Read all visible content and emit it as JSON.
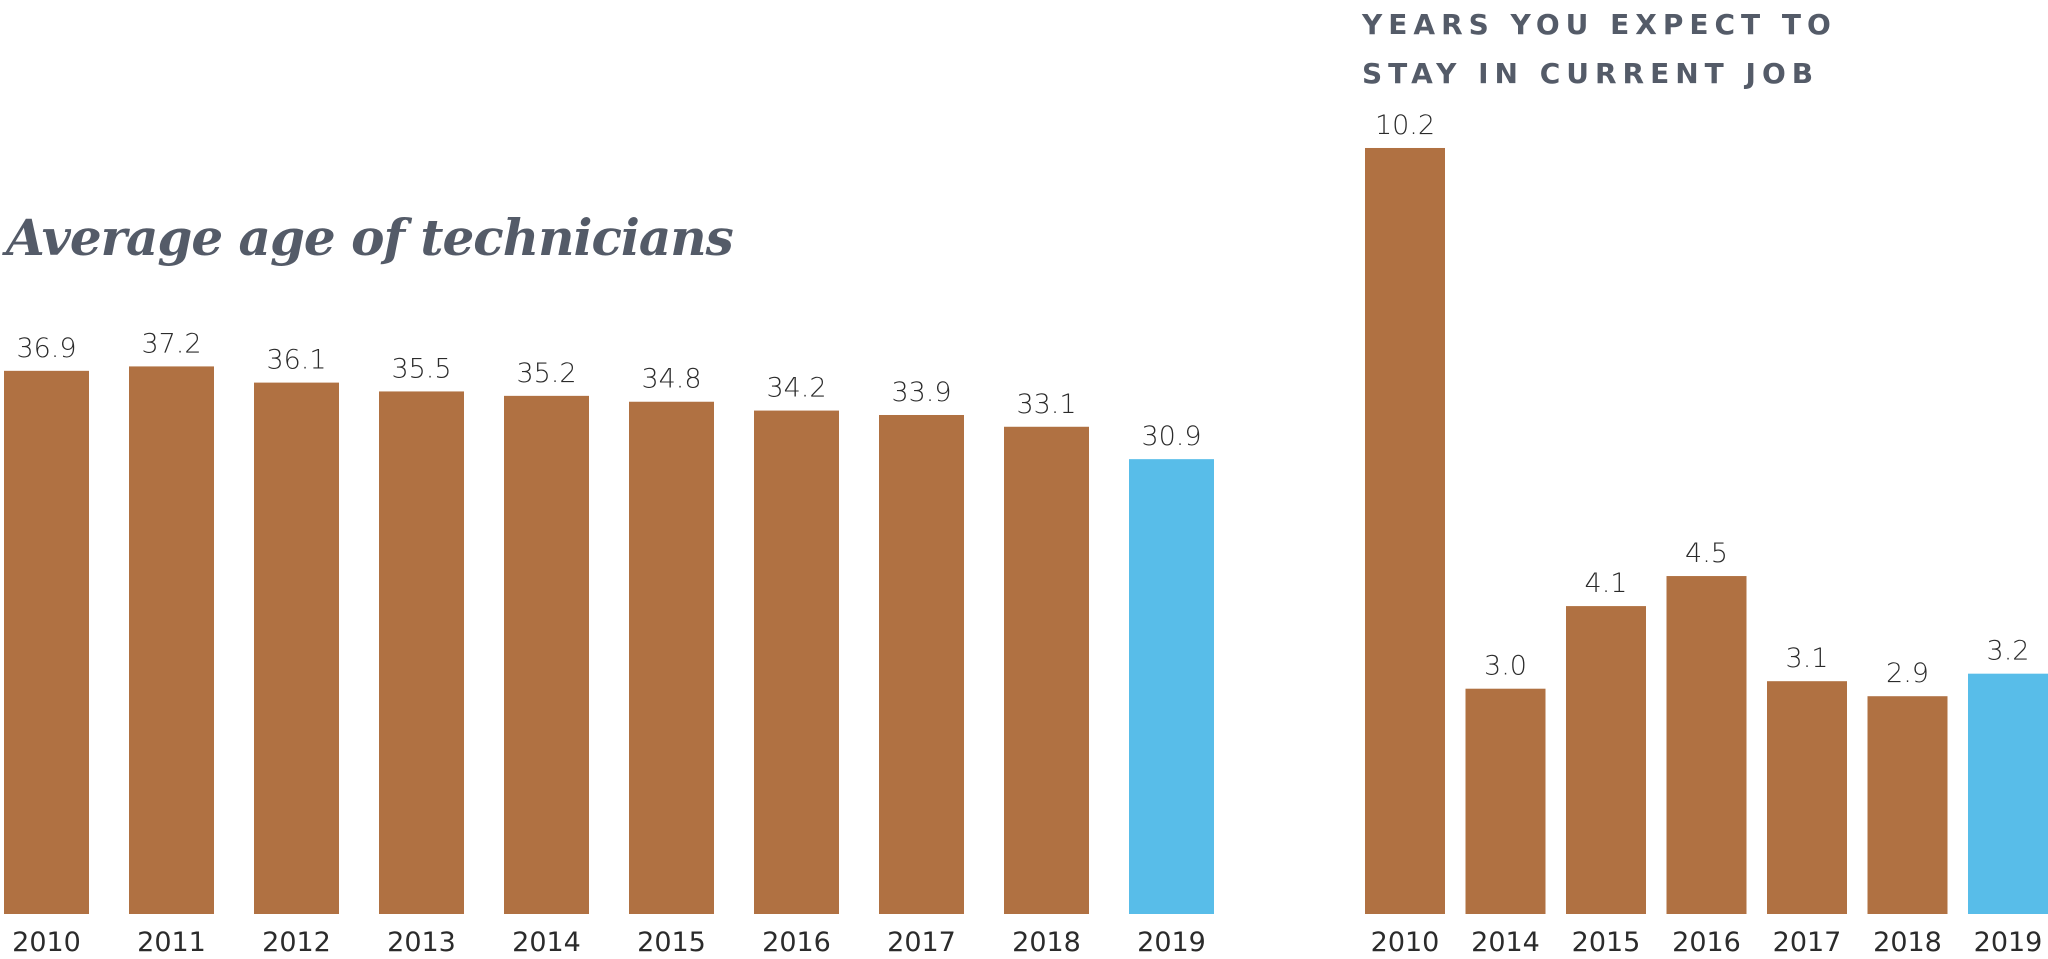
{
  "chart_data": [
    {
      "type": "bar",
      "title": "Average age of technicians",
      "categories": [
        "2010",
        "2011",
        "2012",
        "2013",
        "2014",
        "2015",
        "2016",
        "2017",
        "2018",
        "2019"
      ],
      "values": [
        36.9,
        37.2,
        36.1,
        35.5,
        35.2,
        34.8,
        34.2,
        33.9,
        33.1,
        30.9
      ],
      "data_labels": [
        "36.9",
        "37.2",
        "36.1",
        "35.5",
        "35.2",
        "34.8",
        "34.2",
        "33.9",
        "33.1",
        "30.9"
      ],
      "highlight_index": 9,
      "xlabel": "",
      "ylabel": "",
      "ylim": [
        0,
        37.2
      ],
      "grid": false,
      "colors": {
        "default": "#b07142",
        "highlight": "#58bde9"
      }
    },
    {
      "type": "bar",
      "title": "YEARS YOU EXPECT TO STAY IN CURRENT JOB",
      "title_lines": [
        "YEARS YOU EXPECT TO",
        "STAY IN CURRENT JOB"
      ],
      "categories": [
        "2010",
        "2014",
        "2015",
        "2016",
        "2017",
        "2018",
        "2019"
      ],
      "values": [
        10.2,
        3.0,
        4.1,
        4.5,
        3.1,
        2.9,
        3.2
      ],
      "data_labels": [
        "10.2",
        "3.0",
        "4.1",
        "4.5",
        "3.1",
        "2.9",
        "3.2"
      ],
      "highlight_index": 6,
      "xlabel": "",
      "ylabel": "",
      "ylim": [
        0,
        10.2
      ],
      "grid": false,
      "colors": {
        "default": "#b07142",
        "highlight": "#58bde9"
      }
    }
  ]
}
